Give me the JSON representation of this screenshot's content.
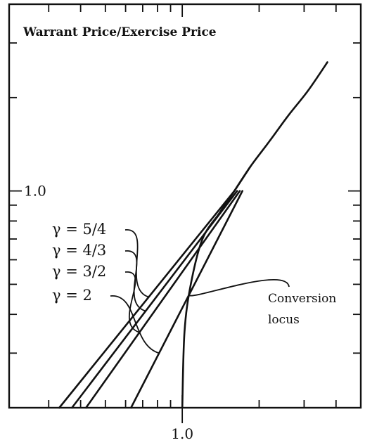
{
  "chart_data": {
    "type": "line",
    "title": "",
    "ylabel": "Warrant Price/Exercise Price",
    "xlabel": "",
    "x_scale": "log",
    "y_scale": "log",
    "xlim": [
      0.21,
      5.0
    ],
    "ylim": [
      0.2,
      4.0
    ],
    "x_tick_labels": [
      {
        "value": 1.0,
        "label": "1.0"
      }
    ],
    "y_tick_labels": [
      {
        "value": 1.0,
        "label": "1.0"
      }
    ],
    "series": [
      {
        "name": "γ = 5/4",
        "x": [
          0.33,
          1.6
        ],
        "y": [
          0.2,
          1.0
        ]
      },
      {
        "name": "γ = 4/3",
        "x": [
          0.37,
          1.64
        ],
        "y": [
          0.2,
          1.0
        ]
      },
      {
        "name": "γ = 3/2",
        "x": [
          0.42,
          1.68
        ],
        "y": [
          0.2,
          1.0
        ]
      },
      {
        "name": "γ = 2",
        "x": [
          0.63,
          1.72
        ],
        "y": [
          0.2,
          1.0
        ]
      },
      {
        "name": "Conversion locus",
        "x": [
          1.0,
          1.02,
          1.08,
          1.2,
          1.4,
          1.6,
          1.85
        ],
        "y": [
          0.2,
          0.35,
          0.5,
          0.7,
          0.85,
          1.0,
          1.2
        ]
      },
      {
        "name": "",
        "x": [
          1.6,
          1.85,
          2.2,
          2.6,
          3.1,
          3.7
        ],
        "y": [
          1.0,
          1.2,
          1.45,
          1.75,
          2.1,
          2.6
        ]
      }
    ],
    "annotations": [
      {
        "text": "γ = 5/4",
        "target": "γ = 5/4"
      },
      {
        "text": "γ = 4/3",
        "target": "γ = 4/3"
      },
      {
        "text": "γ = 3/2",
        "target": "γ = 3/2"
      },
      {
        "text": "γ = 2",
        "target": "γ = 2"
      },
      {
        "text": [
          "Conversion",
          "locus"
        ],
        "target": "Conversion locus"
      }
    ],
    "grid": false,
    "legend": "none"
  }
}
